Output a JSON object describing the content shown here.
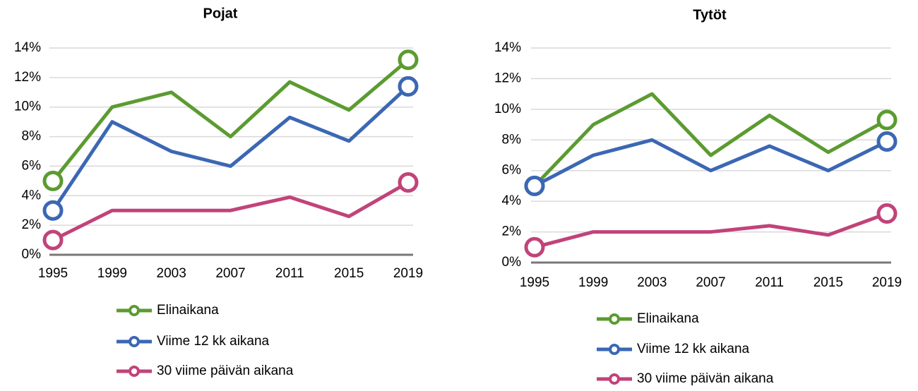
{
  "chart_data": [
    {
      "type": "line",
      "title": "Pojat",
      "categories": [
        "1995",
        "1999",
        "2003",
        "2007",
        "2011",
        "2015",
        "2019"
      ],
      "series": [
        {
          "name": "Elinaikana",
          "color": "#5b9b30",
          "values": [
            5,
            10,
            11,
            8,
            11.7,
            9.8,
            13.2
          ]
        },
        {
          "name": "Viime 12 kk aikana",
          "color": "#3b67b4",
          "values": [
            3,
            9,
            7,
            6,
            9.3,
            7.7,
            11.4
          ]
        },
        {
          "name": "30 viime päivän aikana",
          "color": "#c1437a",
          "values": [
            1,
            3,
            3,
            3,
            3.9,
            2.6,
            4.9
          ]
        }
      ],
      "ylim": [
        0,
        14
      ],
      "yticks": [
        {
          "value": 0,
          "label": "0%"
        },
        {
          "value": 2,
          "label": "2%"
        },
        {
          "value": 4,
          "label": "4%"
        },
        {
          "value": 6,
          "label": "6%"
        },
        {
          "value": 8,
          "label": "8%"
        },
        {
          "value": 10,
          "label": "10%"
        },
        {
          "value": 12,
          "label": "12%"
        },
        {
          "value": 14,
          "label": "14%"
        }
      ],
      "grid": true
    },
    {
      "type": "line",
      "title": "Tytöt",
      "categories": [
        "1995",
        "1999",
        "2003",
        "2007",
        "2011",
        "2015",
        "2019"
      ],
      "series": [
        {
          "name": "Elinaikana",
          "color": "#5b9b30",
          "values": [
            5,
            9,
            11,
            7,
            9.6,
            7.2,
            9.3
          ]
        },
        {
          "name": "Viime 12 kk aikana",
          "color": "#3b67b4",
          "values": [
            5,
            7,
            8,
            6,
            7.6,
            6,
            7.9
          ]
        },
        {
          "name": "30 viime päivän aikana",
          "color": "#c1437a",
          "values": [
            1,
            2,
            2,
            2,
            2.4,
            1.8,
            3.2
          ]
        }
      ],
      "ylim": [
        0,
        14
      ],
      "yticks": [
        {
          "value": 0,
          "label": "0%"
        },
        {
          "value": 2,
          "label": "2%"
        },
        {
          "value": 4,
          "label": "4%"
        },
        {
          "value": 6,
          "label": "6%"
        },
        {
          "value": 8,
          "label": "8%"
        },
        {
          "value": 10,
          "label": "10%"
        },
        {
          "value": 12,
          "label": "12%"
        },
        {
          "value": 14,
          "label": "14%"
        }
      ],
      "grid": true
    }
  ]
}
